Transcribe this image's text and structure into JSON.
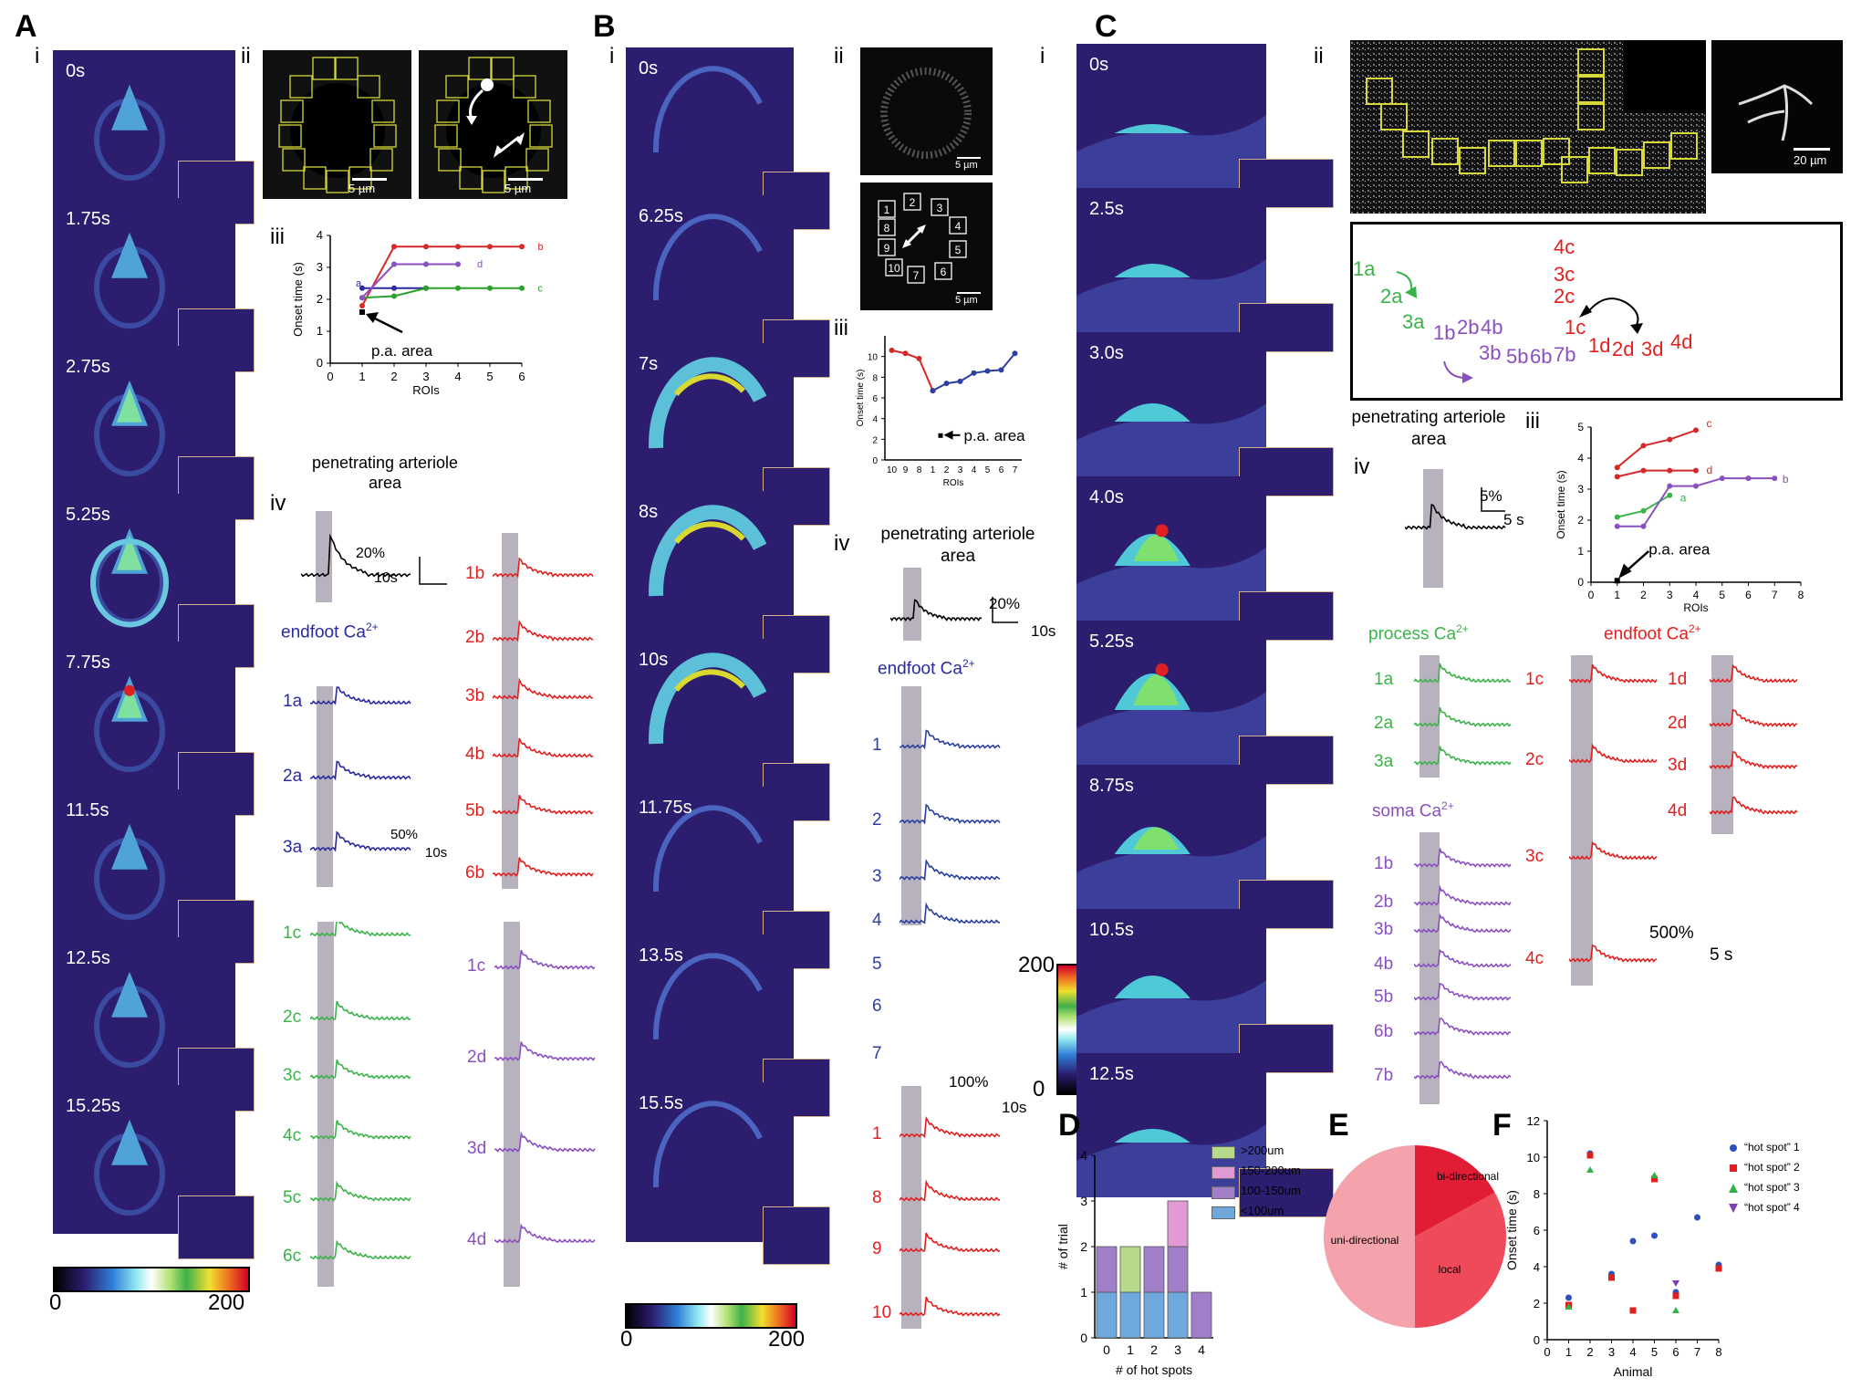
{
  "panels": {
    "A": {
      "label": "A",
      "i": "i",
      "ii": "ii",
      "iii": "iii",
      "iv": "iv",
      "frames": [
        "0s",
        "1.75s",
        "2.75s",
        "5.25s",
        "7.75s",
        "11.5s",
        "12.5s",
        "15.25s"
      ],
      "colorbar": {
        "min": "0",
        "max": "200"
      },
      "scalebar_img": "5 µm",
      "roi_labels_left": [
        "1a",
        "2a",
        "3a"
      ],
      "roi_labels_red": [
        "1b",
        "2b",
        "3b",
        "4b",
        "5b",
        "6b"
      ],
      "roi_labels_green": [
        "1c",
        "2c",
        "3c",
        "4c",
        "5c",
        "6c"
      ],
      "roi_labels_purple": [
        "1c",
        "2d",
        "3d",
        "4d"
      ],
      "onset": {
        "ylabel": "Onset time (s)",
        "xlabel": "ROIs",
        "annotation": "p.a. area",
        "series_labels": [
          "a",
          "b",
          "c",
          "d"
        ]
      },
      "pa_title": "penetrating arteriole area",
      "endfoot_title": "endfoot Ca",
      "scale_small": {
        "y": "20%",
        "x": "10s"
      },
      "scale_large": {
        "y": "50%",
        "x": "10s"
      }
    },
    "B": {
      "label": "B",
      "i": "i",
      "ii": "ii",
      "iii": "iii",
      "iv": "iv",
      "frames": [
        "0s",
        "6.25s",
        "7s",
        "8s",
        "10s",
        "11.75s",
        "13.5s",
        "15.5s"
      ],
      "colorbar": {
        "min": "0",
        "max": "200"
      },
      "colorbar_vert": {
        "min": "0",
        "max": "200"
      },
      "scalebar_img": "5 µm",
      "roi_numbers": [
        "1",
        "2",
        "3",
        "4",
        "5",
        "6",
        "7",
        "8",
        "9",
        "10"
      ],
      "onset": {
        "ylabel": "Onset time (s)",
        "xlabel": "ROIs",
        "annotation": "p.a. area"
      },
      "pa_title": "penetrating arteriole area",
      "endfoot_title": "endfoot Ca",
      "traces_blue": [
        "1",
        "2",
        "3",
        "4",
        "5",
        "6",
        "7"
      ],
      "traces_red": [
        "1",
        "8",
        "9",
        "10"
      ],
      "scale_small": {
        "y": "20%",
        "x": "10s"
      },
      "scale_large": {
        "y": "100%",
        "x": "10s"
      }
    },
    "C": {
      "label": "C",
      "i": "i",
      "ii": "ii",
      "iii": "iii",
      "iv": "iv",
      "frames": [
        "0s",
        "2.5s",
        "3.0s",
        "4.0s",
        "5.25s",
        "8.75s",
        "10.5s",
        "12.5s"
      ],
      "scalebar_img": "20 µm",
      "schematic": {
        "green": [
          "1a",
          "2a",
          "3a"
        ],
        "purple": [
          "1b",
          "2b",
          "4b",
          "3b",
          "5b",
          "6b",
          "7b"
        ],
        "red": [
          "4c",
          "3c",
          "2c",
          "1c",
          "1d",
          "2d",
          "3d",
          "4d"
        ]
      },
      "pa_title": "penetrating arteriole area",
      "scale_small": {
        "y": "5%",
        "x": "5 s"
      },
      "onset": {
        "ylabel": "Onset time (s)",
        "xlabel": "ROIs",
        "annotation": "p.a. area",
        "series_labels": [
          "c",
          "d",
          "a",
          "b"
        ]
      },
      "process_title": "process Ca",
      "soma_title": "soma Ca",
      "endfoot_title": "endfoot Ca",
      "process_traces": [
        "1a",
        "2a",
        "3a"
      ],
      "soma_traces": [
        "1b",
        "2b",
        "3b",
        "4b",
        "5b",
        "6b",
        "7b"
      ],
      "endfoot_c": [
        "1c",
        "2c",
        "3c",
        "4c"
      ],
      "endfoot_d": [
        "1d",
        "2d",
        "3d",
        "4d"
      ],
      "scale_large": {
        "y": "500%",
        "x": "5 s"
      }
    },
    "D": {
      "label": "D"
    },
    "E": {
      "label": "E"
    },
    "F": {
      "label": "F"
    }
  },
  "superscript": "2+",
  "chart_data": [
    {
      "type": "bar",
      "panel": "D",
      "categories": [
        "0",
        "1",
        "2",
        "3",
        "4"
      ],
      "series": [
        {
          "name": "<100um",
          "color": "#6fa8dc",
          "values": [
            1,
            1,
            1,
            1,
            0
          ]
        },
        {
          "name": "100-150um",
          "color": "#a07fc8",
          "values": [
            1,
            0,
            1,
            1,
            1
          ]
        },
        {
          "name": "150-200um",
          "color": "#e29ad6",
          "values": [
            0,
            0,
            0,
            1,
            0
          ]
        },
        {
          "name": ">200um",
          "color": "#b7d98a",
          "values": [
            0,
            1,
            0,
            0,
            0
          ]
        }
      ],
      "legend_order": [
        ">200um",
        "150-200um",
        "100-150um",
        "<100um"
      ],
      "xlabel": "# of hot spots",
      "ylabel": "# of trial",
      "ylim": [
        0,
        4
      ],
      "yticks": [
        "0",
        "1",
        "2",
        "3",
        "4"
      ]
    },
    {
      "type": "pie",
      "panel": "E",
      "slices": [
        {
          "label": "bi-directional",
          "value": 0.17,
          "color": "#e11d35"
        },
        {
          "label": "local",
          "value": 0.33,
          "color": "#ef4a5a"
        },
        {
          "label": "uni-directional",
          "value": 0.5,
          "color": "#f4a3ac"
        }
      ]
    },
    {
      "type": "scatter",
      "panel": "F",
      "xlabel": "Animal",
      "ylabel": "Onset time (s)",
      "xlim": [
        0,
        8
      ],
      "ylim": [
        0,
        12
      ],
      "xticks": [
        "0",
        "1",
        "2",
        "3",
        "4",
        "5",
        "6",
        "7",
        "8"
      ],
      "yticks": [
        "0",
        "2",
        "4",
        "6",
        "8",
        "10",
        "12"
      ],
      "series": [
        {
          "name": "“hot spot” 1",
          "color": "#2f4fbf",
          "marker": "circle",
          "points": [
            [
              1,
              2.3
            ],
            [
              2,
              10.2
            ],
            [
              3,
              3.6
            ],
            [
              4,
              5.4
            ],
            [
              5,
              5.7
            ],
            [
              6,
              2.6
            ],
            [
              7,
              6.7
            ],
            [
              8,
              4.1
            ]
          ]
        },
        {
          "name": "“hot spot” 2",
          "color": "#e0201f",
          "marker": "square",
          "points": [
            [
              1,
              1.9
            ],
            [
              2,
              10.1
            ],
            [
              3,
              3.4
            ],
            [
              4,
              1.6
            ],
            [
              5,
              8.8
            ],
            [
              6,
              2.4
            ],
            [
              8,
              3.9
            ]
          ]
        },
        {
          "name": "“hot spot” 3",
          "color": "#2fb34a",
          "marker": "triangle-up",
          "points": [
            [
              1,
              1.8
            ],
            [
              2,
              9.3
            ],
            [
              5,
              9.0
            ],
            [
              6,
              1.6
            ]
          ]
        },
        {
          "name": "“hot spot” 4",
          "color": "#7b3fb7",
          "marker": "triangle-down",
          "points": [
            [
              6,
              3.1
            ]
          ]
        }
      ]
    },
    {
      "type": "line",
      "panel": "A-iii",
      "xlabel": "ROIs",
      "ylabel": "Onset time (s)",
      "xlim": [
        0,
        6
      ],
      "ylim": [
        0,
        4
      ],
      "xticks": [
        "0",
        "1",
        "2",
        "3",
        "4",
        "5",
        "6"
      ],
      "yticks": [
        "0",
        "1",
        "2",
        "3",
        "4"
      ],
      "series": [
        {
          "name": "a",
          "color": "#2a2aa0",
          "x": [
            1,
            2,
            3
          ],
          "y": [
            2.35,
            2.35,
            2.35
          ]
        },
        {
          "name": "b",
          "color": "#d62828",
          "x": [
            1,
            2,
            3,
            4,
            5,
            6
          ],
          "y": [
            1.8,
            3.65,
            3.65,
            3.65,
            3.65,
            3.65
          ]
        },
        {
          "name": "c",
          "color": "#2ca02c",
          "x": [
            1,
            2,
            3,
            4,
            5,
            6
          ],
          "y": [
            2.05,
            2.1,
            2.35,
            2.35,
            2.35,
            2.35
          ]
        },
        {
          "name": "d",
          "color": "#8a4fc0",
          "x": [
            1,
            2,
            3,
            4
          ],
          "y": [
            2.05,
            3.1,
            3.1,
            3.1
          ]
        }
      ],
      "pa_point": [
        1,
        1.6
      ]
    },
    {
      "type": "line",
      "panel": "B-iii",
      "xlabel": "ROIs",
      "ylabel": "Onset time (s)",
      "categories": [
        "10",
        "9",
        "8",
        "1",
        "2",
        "3",
        "4",
        "5",
        "6",
        "7"
      ],
      "ylim": [
        0,
        12
      ],
      "yticks": [
        "0",
        "2",
        "4",
        "6",
        "8",
        "10"
      ],
      "series": [
        {
          "name": "red",
          "color": "#d62828",
          "values": [
            10.6,
            10.3,
            9.8,
            6.7,
            null,
            null,
            null,
            null,
            null,
            null
          ]
        },
        {
          "name": "blue",
          "color": "#2a3fa0",
          "values": [
            null,
            null,
            null,
            6.7,
            7.4,
            7.6,
            8.4,
            8.6,
            8.7,
            10.3
          ]
        }
      ],
      "pa_point": 2.4
    },
    {
      "type": "line",
      "panel": "C-iii",
      "xlabel": "ROIs",
      "ylabel": "Onset time (s)",
      "xlim": [
        0,
        8
      ],
      "ylim": [
        0,
        5
      ],
      "xticks": [
        "0",
        "1",
        "2",
        "3",
        "4",
        "5",
        "6",
        "7",
        "8"
      ],
      "yticks": [
        "0",
        "1",
        "2",
        "3",
        "4",
        "5"
      ],
      "series": [
        {
          "name": "c",
          "color": "#d62828",
          "x": [
            1,
            2,
            3,
            4
          ],
          "y": [
            3.7,
            4.4,
            4.6,
            4.9
          ]
        },
        {
          "name": "d",
          "color": "#d62828",
          "x": [
            1,
            2,
            3,
            4
          ],
          "y": [
            3.4,
            3.6,
            3.6,
            3.6
          ]
        },
        {
          "name": "a",
          "color": "#3cb34a",
          "x": [
            1,
            2,
            3
          ],
          "y": [
            2.1,
            2.3,
            2.8
          ]
        },
        {
          "name": "b",
          "color": "#8a4fc0",
          "x": [
            1,
            2,
            3,
            4,
            5,
            6,
            7
          ],
          "y": [
            1.8,
            1.8,
            3.1,
            3.1,
            3.35,
            3.35,
            3.35
          ]
        }
      ],
      "pa_point": [
        1,
        0.05
      ]
    }
  ]
}
